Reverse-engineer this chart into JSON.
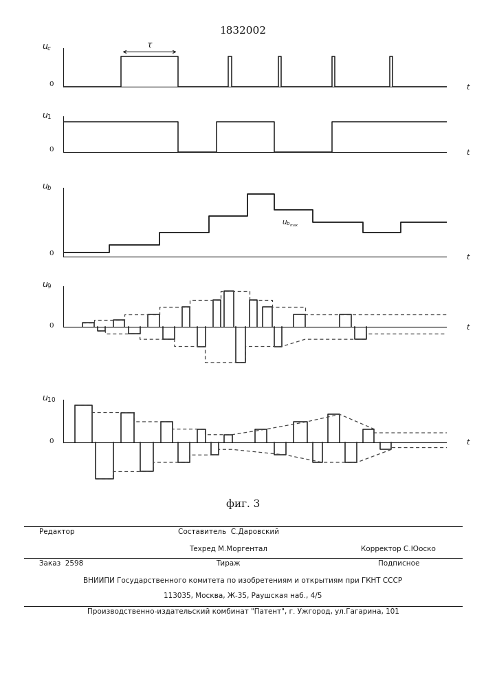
{
  "title": "1832002",
  "fig_caption": "фиг. 3",
  "background_color": "#ffffff",
  "text_color": "#1a1a1a",
  "footer": {
    "line1_left": "Редактор",
    "line1_center": "Составитель  С.Даровский",
    "line2_center": "Техред М.Моргентал",
    "line2_right": "Корректор С.Юоско",
    "line3_left": "Заказ  2598",
    "line3_center": "Тираж",
    "line3_right": "Подписное",
    "line4": "ВНИИПИ Государственного комитета по изобретениям и открытиям при ГКНТ СССР",
    "line5": "113035, Москва, Ж-35, Раушская наб., 4/5",
    "line6": "Производственно-издательский комбинат \"Патент\", г. Ужгород, ул.Гагарина, 101"
  }
}
